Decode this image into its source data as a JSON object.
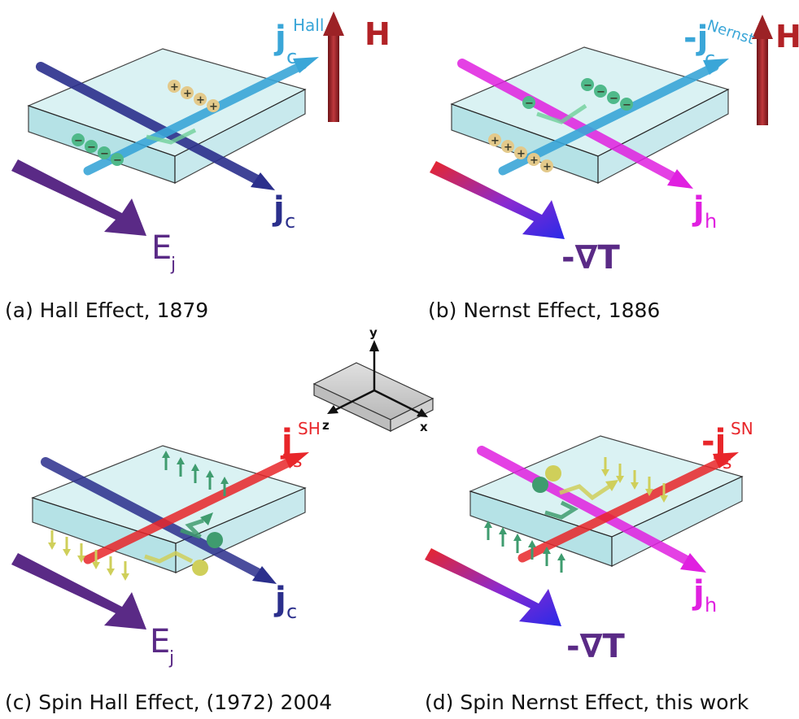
{
  "colors": {
    "slab_fill": "#bfe6ea",
    "slab_top": "#d4f0f2",
    "jc": "#2b2f8c",
    "hall": "#3aa6d8",
    "purple_E": "#5a2a86",
    "magenta_jh": "#e020e0",
    "red_js": "#e8262a",
    "H_arrow": "#9c2226",
    "plus_charge": "#e3c98a",
    "minus_charge": "#4fb98a",
    "spin_yellow": "#cfcf5a",
    "spin_green": "#3f9c6f"
  },
  "panels": [
    {
      "id": "a",
      "caption": "(a) Hall Effect, 1879",
      "current_label": "j",
      "current_sub": "c",
      "transverse_label": "j",
      "transverse_sub": "c",
      "transverse_sup": "Hall",
      "field_label": "H",
      "drive_label": "E",
      "drive_sub": "j"
    },
    {
      "id": "b",
      "caption": "(b) Nernst Effect, 1886",
      "current_label": "j",
      "current_sub": "h",
      "transverse_label": "-j",
      "transverse_sub": "c",
      "transverse_sup": "Nernst",
      "field_label": "H",
      "drive_label": "-∇T"
    },
    {
      "id": "c",
      "caption": "(c) Spin Hall Effect, (1972) 2004",
      "current_label": "j",
      "current_sub": "c",
      "transverse_label": "j",
      "transverse_sub": "s",
      "transverse_sup": "SH",
      "drive_label": "E",
      "drive_sub": "j"
    },
    {
      "id": "d",
      "caption": "(d) Spin Nernst Effect, this work",
      "current_label": "j",
      "current_sub": "h",
      "transverse_label": "-j",
      "transverse_sub": "s",
      "transverse_sup": "SN",
      "drive_label": "-∇T"
    }
  ],
  "axes": {
    "x": "x",
    "y": "y",
    "z": "z"
  },
  "signs": {
    "plus": "+",
    "minus": "−"
  }
}
